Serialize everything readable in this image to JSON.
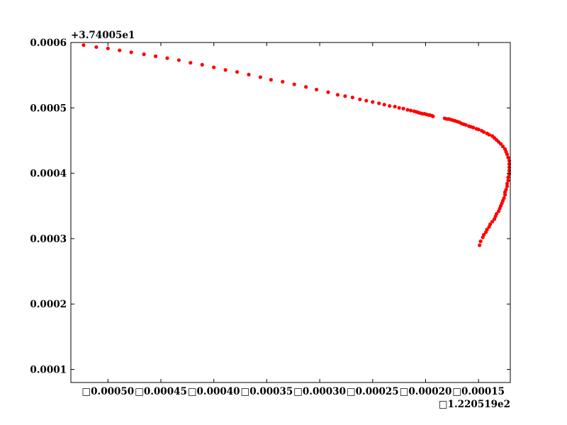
{
  "chart_data": {
    "type": "scatter",
    "title": "",
    "xlabel": "",
    "ylabel": "",
    "grid": false,
    "x_offset_label": "□1.220519e2",
    "y_offset_label": "+3.74005e1",
    "xlim": [
      -0.000535,
      -0.00012
    ],
    "ylim": [
      8e-05,
      0.0006
    ],
    "x_ticks": [
      {
        "value": -0.0005,
        "label": "□0.00050"
      },
      {
        "value": -0.00045,
        "label": "□0.00045"
      },
      {
        "value": -0.0004,
        "label": "□0.00040"
      },
      {
        "value": -0.00035,
        "label": "□0.00035"
      },
      {
        "value": -0.0003,
        "label": "□0.00030"
      },
      {
        "value": -0.00025,
        "label": "□0.00025"
      },
      {
        "value": -0.0002,
        "label": "□0.00020"
      },
      {
        "value": -0.00015,
        "label": "□0.00015"
      }
    ],
    "y_ticks": [
      {
        "value": 0.0001,
        "label": "0.0001"
      },
      {
        "value": 0.0002,
        "label": "0.0002"
      },
      {
        "value": 0.0003,
        "label": "0.0003"
      },
      {
        "value": 0.0004,
        "label": "0.0004"
      },
      {
        "value": 0.0005,
        "label": "0.0005"
      },
      {
        "value": 0.0006,
        "label": "0.0006"
      }
    ],
    "marker_color": "#ff0000",
    "series": [
      {
        "x": [
          -0.000523,
          -0.000511,
          -0.0005,
          -0.000489,
          -0.000478,
          -0.000466,
          -0.000455,
          -0.000444,
          -0.000433,
          -0.000422,
          -0.000411,
          -0.0004,
          -0.000389,
          -0.000378,
          -0.000367,
          -0.000356,
          -0.000346,
          -0.000335,
          -0.000324,
          -0.000313,
          -0.000303,
          -0.000292,
          -0.000283,
          -0.000276,
          -0.000269,
          -0.000262,
          -0.000256,
          -0.00025,
          -0.000244,
          -0.000239,
          -0.000234,
          -0.000229,
          -0.000225,
          -0.000221,
          -0.000217,
          -0.000214,
          -0.000211,
          -0.000209,
          -0.000207,
          -0.000205,
          -0.000203,
          -0.000201,
          -0.000199,
          -0.000197,
          -0.000196,
          -0.000194,
          -0.000193,
          -0.000182,
          -0.00018,
          -0.000178,
          -0.000176,
          -0.000174,
          -0.000172,
          -0.00017,
          -0.000168,
          -0.000166,
          -0.000164,
          -0.000162,
          -0.000159,
          -0.000157,
          -0.000155,
          -0.000152,
          -0.00015,
          -0.000147,
          -0.000145,
          -0.000142,
          -0.00014,
          -0.000137,
          -0.000135,
          -0.000133,
          -0.000131,
          -0.000129,
          -0.000127,
          -0.000125,
          -0.000124,
          -0.000123,
          -0.000122,
          -0.000121,
          -0.000121,
          -0.000121,
          -0.000121,
          -0.000121,
          -0.000122,
          -0.000122,
          -0.000123,
          -0.000123,
          -0.000124,
          -0.000125,
          -0.000125,
          -0.000126,
          -0.000127,
          -0.000128,
          -0.000129,
          -0.00013,
          -0.000131,
          -0.000133,
          -0.000134,
          -0.000135,
          -0.000137,
          -0.000139,
          -0.00014,
          -0.000142,
          -0.000143,
          -0.000145,
          -0.000146,
          -0.000148,
          -0.000149
        ],
        "y": [
          0.000596,
          0.000593,
          0.000591,
          0.000588,
          0.000585,
          0.000582,
          0.000579,
          0.000576,
          0.000573,
          0.000569,
          0.000566,
          0.000562,
          0.000558,
          0.000555,
          0.000551,
          0.000547,
          0.000543,
          0.00054,
          0.000536,
          0.000532,
          0.000528,
          0.000524,
          0.00052,
          0.000518,
          0.000516,
          0.000513,
          0.000511,
          0.000509,
          0.000507,
          0.000505,
          0.000503,
          0.000502,
          0.0005,
          0.000499,
          0.000497,
          0.000496,
          0.000495,
          0.000494,
          0.000493,
          0.000492,
          0.000491,
          0.000491,
          0.00049,
          0.000489,
          0.000489,
          0.000488,
          0.000487,
          0.000484,
          0.000483,
          0.000483,
          0.000482,
          0.000481,
          0.00048,
          0.000479,
          0.000478,
          0.000476,
          0.000475,
          0.000474,
          0.000472,
          0.000471,
          0.00047,
          0.000468,
          0.000467,
          0.000465,
          0.000463,
          0.000461,
          0.000459,
          0.000457,
          0.000454,
          0.000451,
          0.000448,
          0.000445,
          0.000441,
          0.000437,
          0.000433,
          0.000429,
          0.000424,
          0.000419,
          0.000414,
          0.000409,
          0.000404,
          0.000399,
          0.000394,
          0.000389,
          0.000384,
          0.00038,
          0.000375,
          0.000371,
          0.000367,
          0.000362,
          0.000358,
          0.000354,
          0.00035,
          0.000346,
          0.000342,
          0.000338,
          0.000334,
          0.00033,
          0.000326,
          0.000322,
          0.000318,
          0.000314,
          0.00031,
          0.000306,
          0.000302,
          0.000296,
          0.00029
        ]
      }
    ]
  }
}
